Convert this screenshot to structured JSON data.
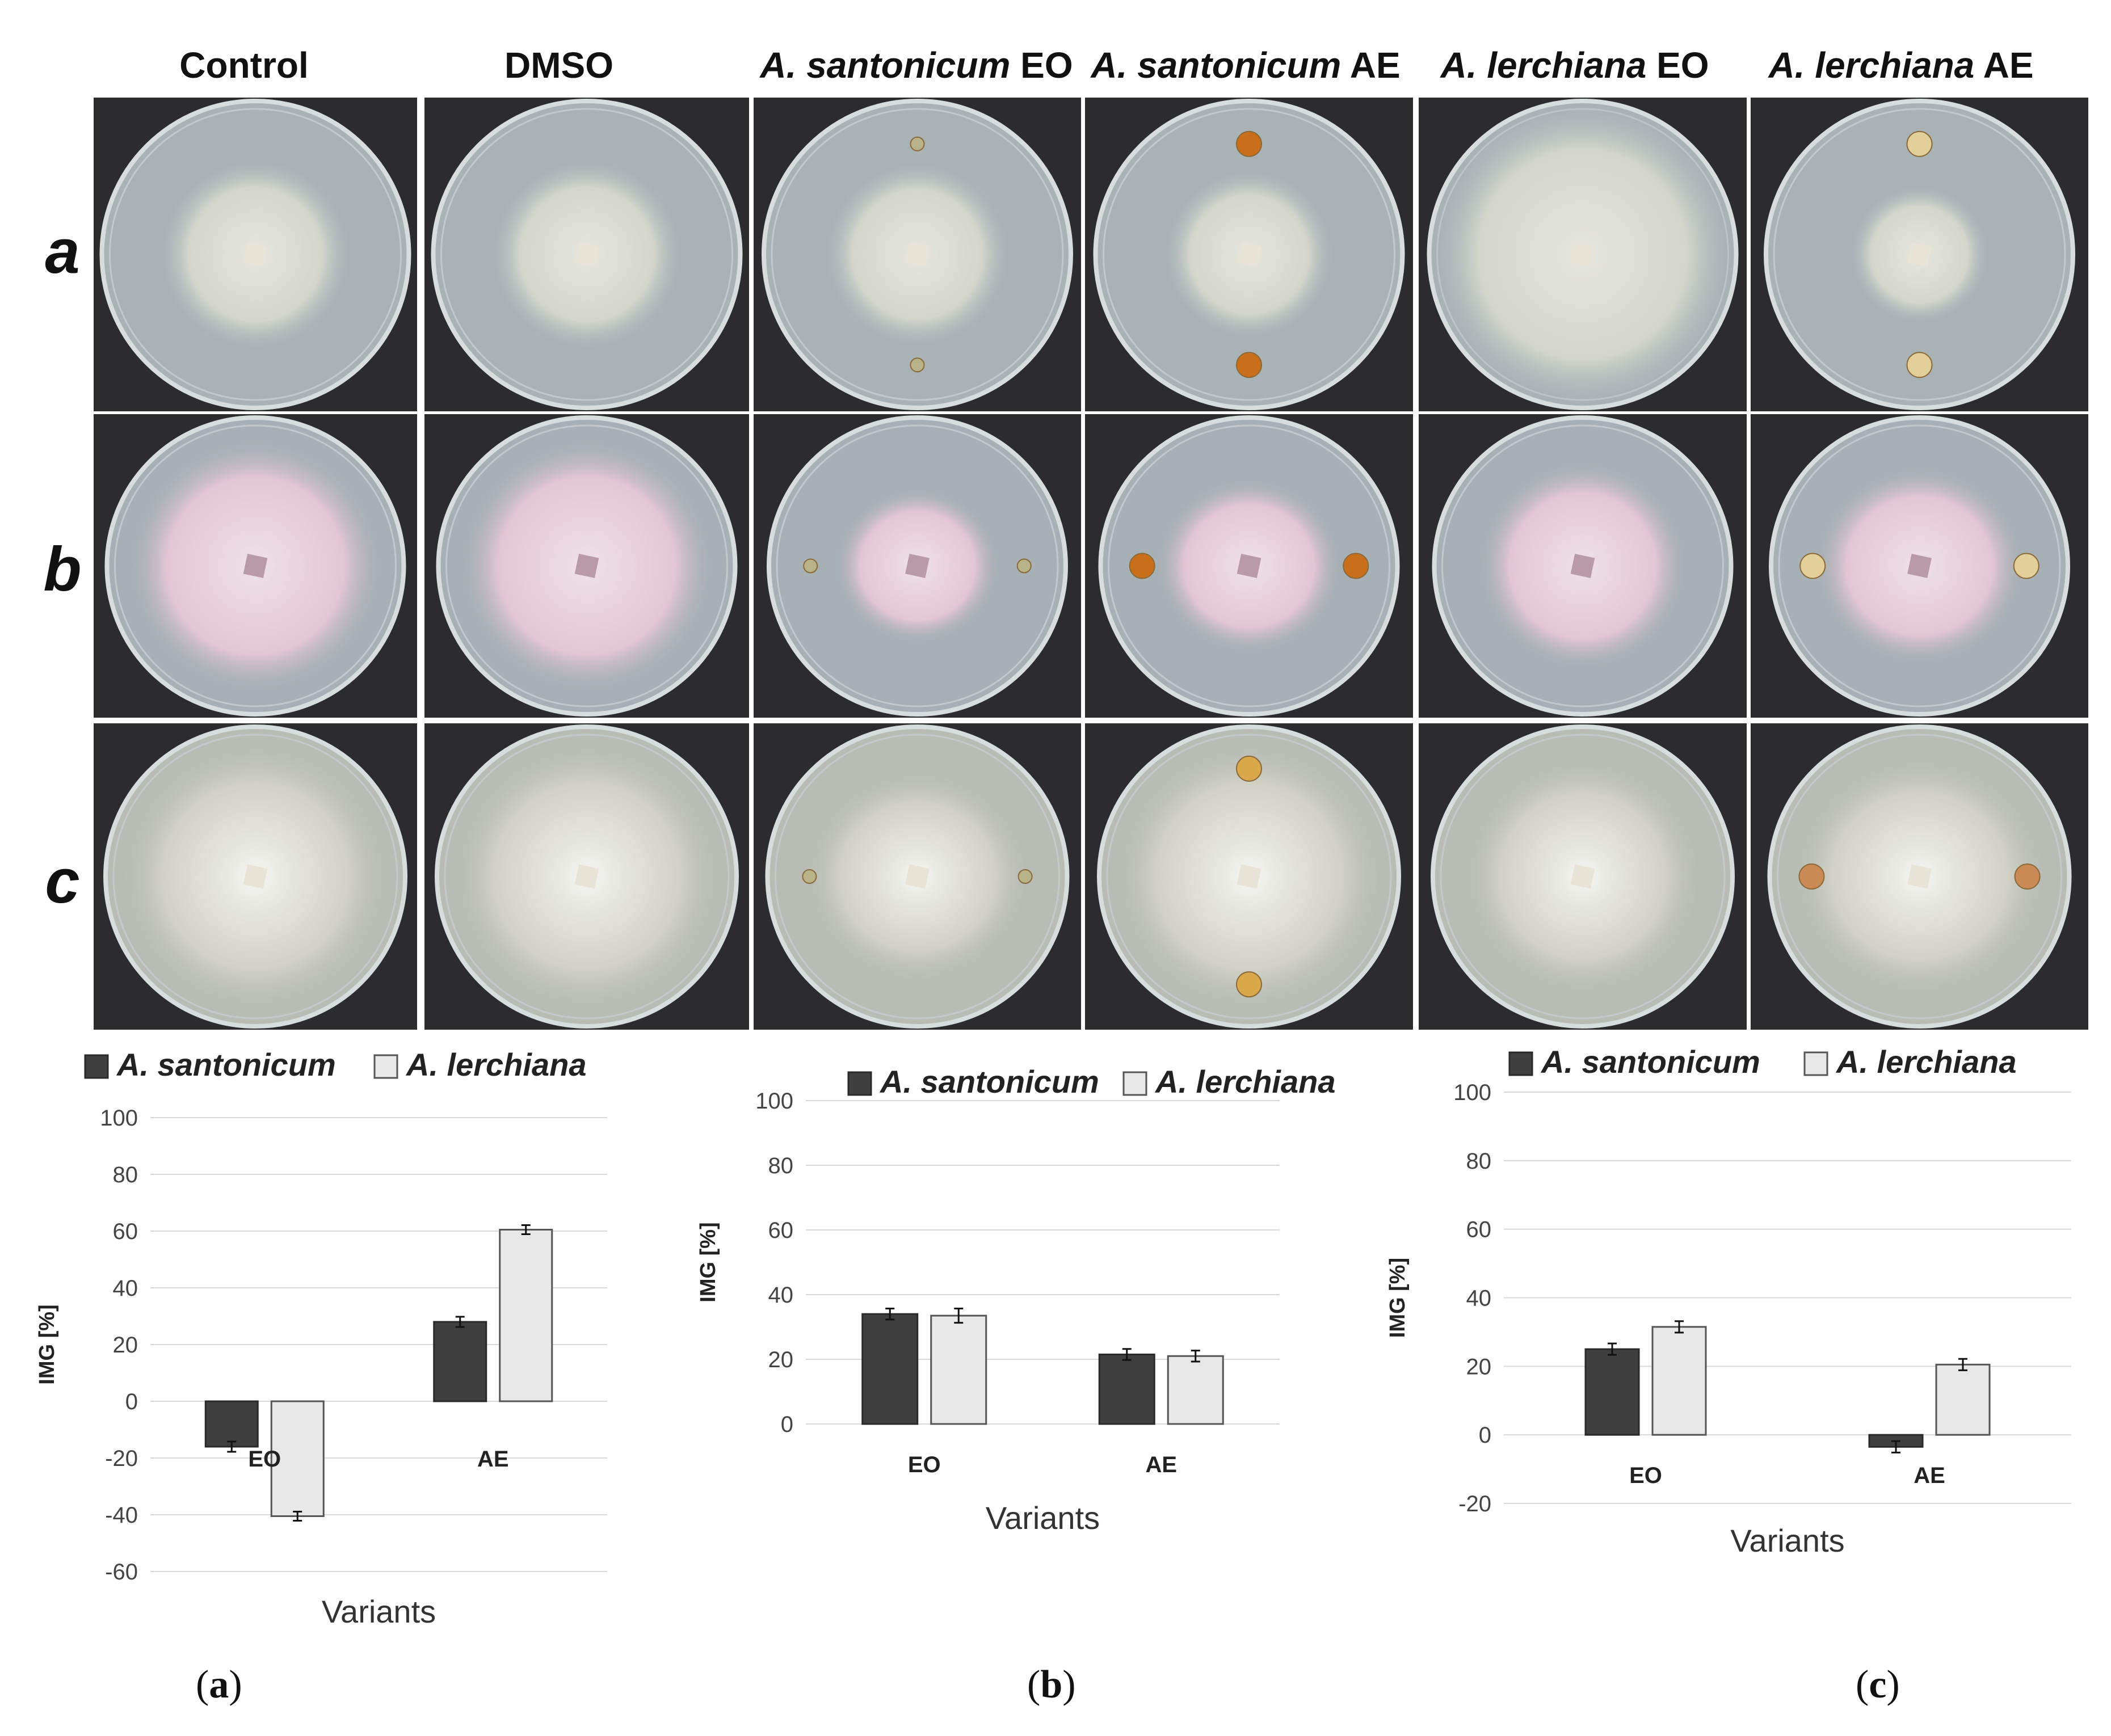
{
  "columns": [
    {
      "species": "",
      "suffix": "Control"
    },
    {
      "species": "",
      "suffix": "DMSO"
    },
    {
      "species": "A. santonicum",
      "suffix": " EO"
    },
    {
      "species": "A. santonicum",
      "suffix": " AE"
    },
    {
      "species": "A. lerchiana",
      "suffix": " EO"
    },
    {
      "species": "A. lerchiana",
      "suffix": " AE"
    }
  ],
  "rows": [
    {
      "label": "a"
    },
    {
      "label": "b"
    },
    {
      "label": "c"
    }
  ],
  "panels": [
    {
      "letter": "a",
      "open": "(",
      "close": ")"
    },
    {
      "letter": "b",
      "open": "(",
      "close": ")"
    },
    {
      "letter": "c",
      "open": "(",
      "close": ")"
    }
  ],
  "colors": {
    "santonicum": "#3f3f3f",
    "lerchiana": "#e8e8e8",
    "grid": "#d9d9d9",
    "plate_bg": "#2c2c2e"
  },
  "chart_data": [
    {
      "type": "bar",
      "categories": [
        "EO",
        "AE"
      ],
      "series": [
        {
          "name": "A. santonicum",
          "values": [
            -16,
            28
          ],
          "errors": [
            1.0,
            1.0
          ]
        },
        {
          "name": "A. lerchiana",
          "values": [
            -40.5,
            60.5
          ],
          "errors": [
            0.8,
            0.8
          ]
        }
      ],
      "xlabel": "Variants",
      "ylabel": "IMG [%]",
      "ylim": [
        -60,
        100
      ],
      "yticks": [
        -60,
        -40,
        -20,
        0,
        20,
        40,
        60,
        80,
        100
      ],
      "grid": true,
      "legend": "top"
    },
    {
      "type": "bar",
      "categories": [
        "EO",
        "AE"
      ],
      "series": [
        {
          "name": "A. santonicum",
          "values": [
            34,
            21.5
          ],
          "errors": [
            1.0,
            1.0
          ]
        },
        {
          "name": "A. lerchiana",
          "values": [
            33.5,
            21
          ],
          "errors": [
            1.5,
            1.0
          ]
        }
      ],
      "xlabel": "Variants",
      "ylabel": "IMG [%]",
      "ylim": [
        0,
        100
      ],
      "yticks": [
        0,
        20,
        40,
        60,
        80,
        100
      ],
      "grid": true,
      "legend": "top"
    },
    {
      "type": "bar",
      "categories": [
        "EO",
        "AE"
      ],
      "series": [
        {
          "name": "A. santonicum",
          "values": [
            25,
            -3.5
          ],
          "errors": [
            1.0,
            1.0
          ]
        },
        {
          "name": "A. lerchiana",
          "values": [
            31.5,
            20.5
          ],
          "errors": [
            1.0,
            1.0
          ]
        }
      ],
      "xlabel": "Variants",
      "ylabel": "IMG [%]",
      "ylim": [
        -20,
        100
      ],
      "yticks": [
        -20,
        0,
        20,
        40,
        60,
        80,
        100
      ],
      "grid": true,
      "legend": "top"
    }
  ]
}
